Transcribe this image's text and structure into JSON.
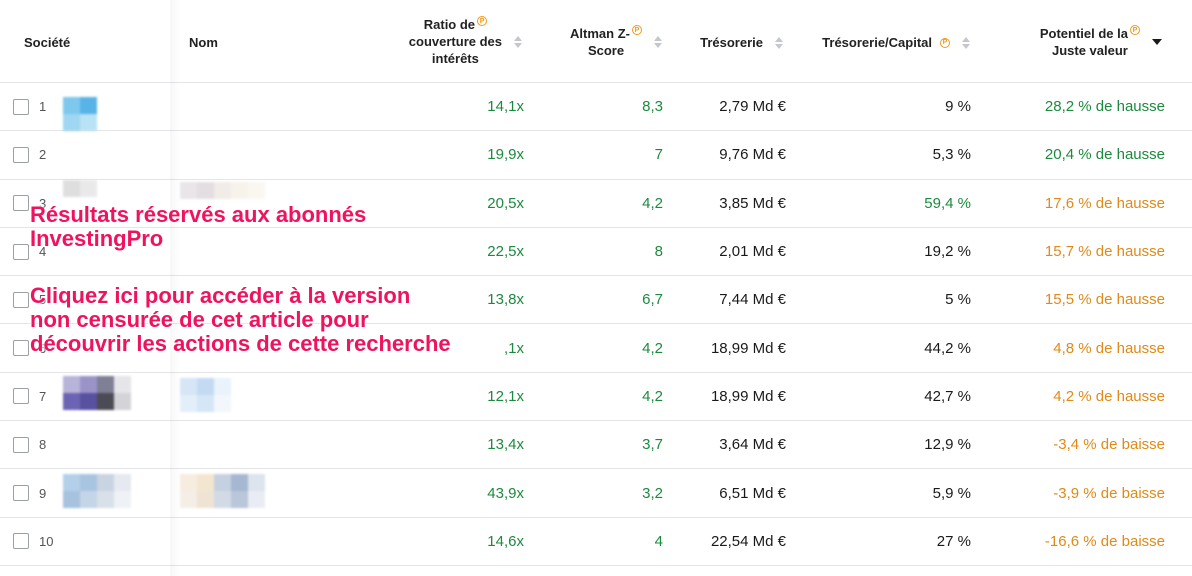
{
  "header": {
    "societe": "Société",
    "nom": "Nom",
    "ratio_line1": "Ratio de",
    "ratio_line2": "couverture des",
    "ratio_line3": "intérêts",
    "altman_line1": "Altman Z-",
    "altman_line2": "Score",
    "tresorerie": "Trésorerie",
    "treso_capital": "Trésorerie/Capital",
    "potentiel_line1": "Potentiel de la",
    "potentiel_line2": "Juste valeur",
    "pro_badge": "P"
  },
  "rows": [
    {
      "index": "1",
      "ratio": "14,1x",
      "altman": "8,3",
      "tresorerie": "2,79 Md €",
      "treso_capital": "9 %",
      "potentiel": "28,2 % de hausse",
      "treso_color": "dark",
      "pot_color": "green"
    },
    {
      "index": "2",
      "ratio": "19,9x",
      "altman": "7",
      "tresorerie": "9,76 Md €",
      "treso_capital": "5,3 %",
      "potentiel": "20,4 % de hausse",
      "treso_color": "dark",
      "pot_color": "green"
    },
    {
      "index": "3",
      "ratio": "20,5x",
      "altman": "4,2",
      "tresorerie": "3,85 Md €",
      "treso_capital": "59,4 %",
      "potentiel": "17,6 % de hausse",
      "treso_color": "green",
      "pot_color": "orange"
    },
    {
      "index": "4",
      "ratio": "22,5x",
      "altman": "8",
      "tresorerie": "2,01 Md €",
      "treso_capital": "19,2 %",
      "potentiel": "15,7 % de hausse",
      "treso_color": "dark",
      "pot_color": "orange"
    },
    {
      "index": "5",
      "ratio": "13,8x",
      "altman": "6,7",
      "tresorerie": "7,44 Md €",
      "treso_capital": "5 %",
      "potentiel": "15,5 % de hausse",
      "treso_color": "dark",
      "pot_color": "orange"
    },
    {
      "index": "6",
      "ratio": ",1x",
      "altman": "4,2",
      "tresorerie": "18,99 Md €",
      "treso_capital": "44,2 %",
      "potentiel": "4,8 % de hausse",
      "treso_color": "dark",
      "pot_color": "orange"
    },
    {
      "index": "7",
      "ratio": "12,1x",
      "altman": "4,2",
      "tresorerie": "18,99 Md €",
      "treso_capital": "42,7 %",
      "potentiel": "4,2 % de hausse",
      "treso_color": "dark",
      "pot_color": "orange"
    },
    {
      "index": "8",
      "ratio": "13,4x",
      "altman": "3,7",
      "tresorerie": "3,64 Md €",
      "treso_capital": "12,9 %",
      "potentiel": "-3,4 % de baisse",
      "treso_color": "dark",
      "pot_color": "orange"
    },
    {
      "index": "9",
      "ratio": "43,9x",
      "altman": "3,2",
      "tresorerie": "6,51 Md €",
      "treso_capital": "5,9 %",
      "potentiel": "-3,9 % de baisse",
      "treso_color": "dark",
      "pot_color": "orange"
    },
    {
      "index": "10",
      "ratio": "14,6x",
      "altman": "4",
      "tresorerie": "22,54 Md €",
      "treso_capital": "27 %",
      "potentiel": "-16,6 % de baisse",
      "treso_color": "dark",
      "pot_color": "orange"
    }
  ],
  "overlay": {
    "line1": "Résultats réservés aux abonnés",
    "line2": "InvestingPro",
    "line3": "Cliquez ici pour accéder à la version",
    "line4": "non censurée de cet article pour",
    "line5": "découvrir les actions de cette recherche"
  },
  "colors": {
    "positive": "#1c8a3e",
    "warning": "#e08a17",
    "overlay_text": "#f0135c",
    "pro_badge": "#f29a1e"
  }
}
